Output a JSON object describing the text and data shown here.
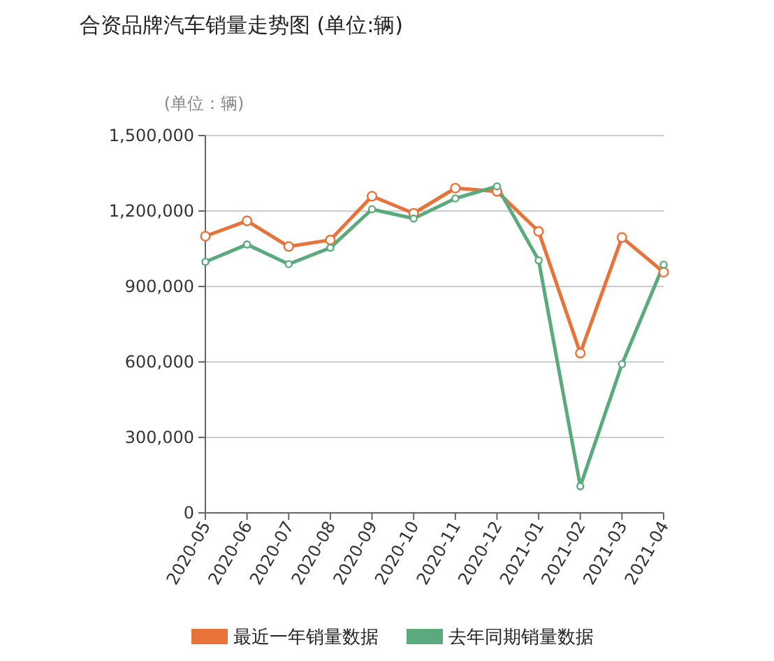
{
  "chart_data": {
    "type": "line",
    "title": "合资品牌汽车销量走势图 (单位:辆)",
    "ylabel": "(单位：辆)",
    "categories": [
      "2020-05",
      "2020-06",
      "2020-07",
      "2020-08",
      "2020-09",
      "2020-10",
      "2020-11",
      "2020-12",
      "2021-01",
      "2021-02",
      "2021-03",
      "2021-04"
    ],
    "series": [
      {
        "name": "最近一年销量数据",
        "color": "#e8733a",
        "values": [
          1100000,
          1161000,
          1059000,
          1085000,
          1259000,
          1191000,
          1291000,
          1278000,
          1119000,
          635000,
          1095000,
          957000
        ]
      },
      {
        "name": "去年同期销量数据",
        "color": "#5aaa7e",
        "values": [
          998000,
          1067000,
          989000,
          1054000,
          1207000,
          1170000,
          1250000,
          1298000,
          1004000,
          106000,
          591000,
          987000
        ]
      }
    ],
    "ylim": [
      0,
      1500000
    ],
    "yticks": [
      {
        "value": 0,
        "label": "0"
      },
      {
        "value": 300000,
        "label": "300,000"
      },
      {
        "value": 600000,
        "label": "600,000"
      },
      {
        "value": 900000,
        "label": "900,000"
      },
      {
        "value": 1200000,
        "label": "1,200,000"
      },
      {
        "value": 1500000,
        "label": "1,500,000"
      }
    ],
    "grid": "y",
    "legend": "bottom",
    "marker": "circle",
    "line_style": "solid"
  }
}
